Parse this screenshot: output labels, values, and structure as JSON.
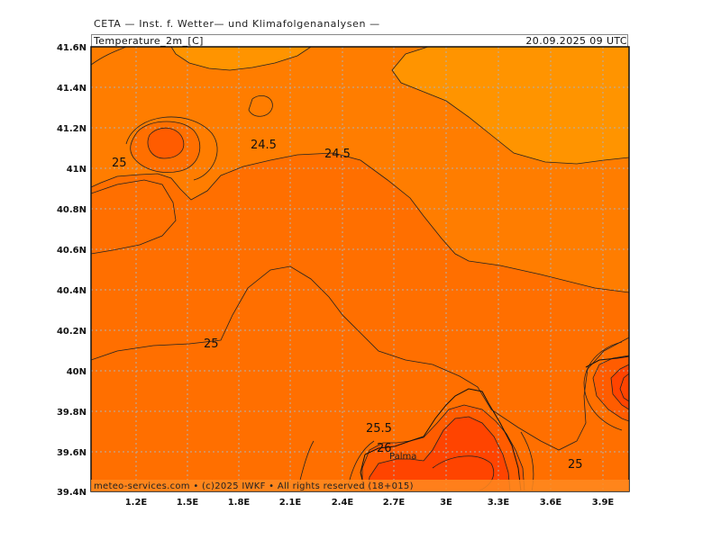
{
  "header": {
    "title": "CETA — Inst. f. Wetter— und Klimafolgenanalysen —",
    "variable": "Temperature_2m_[C]",
    "valid_time": "20.09.2025  09  UTC"
  },
  "colors": {
    "band_24_24_5": "#ff9400",
    "band_24_5_25": "#ff7d00",
    "band_25_25_5": "#ff6f00",
    "band_25_5_26": "#ff5c00",
    "band_26_plus": "#ff4400",
    "gridline": "#b0b0b0",
    "contour": "#222222"
  },
  "axes": {
    "x_ticks": [
      "1.2E",
      "1.5E",
      "1.8E",
      "2.1E",
      "2.4E",
      "2.7E",
      "3E",
      "3.3E",
      "3.6E",
      "3.9E"
    ],
    "y_ticks": [
      "41.6N",
      "41.4N",
      "41.2N",
      "41N",
      "40.8N",
      "40.6N",
      "40.4N",
      "40.2N",
      "40N",
      "39.8N",
      "39.6N",
      "39.4N"
    ]
  },
  "contour_labels": [
    "24.5",
    "24.5",
    "25",
    "25",
    "25.5",
    "26",
    "25"
  ],
  "places": [
    "Palma"
  ],
  "footer": {
    "credit": "meteo-services.com • (c)2025 IWKF • All rights reserved (18+015)"
  }
}
